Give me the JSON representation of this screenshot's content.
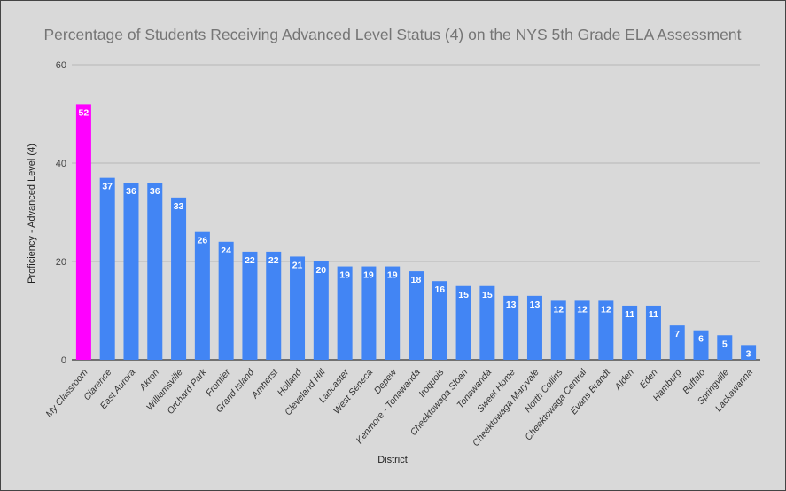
{
  "chart_data": {
    "type": "bar",
    "title": "Percentage of Students Receiving Advanced Level Status (4) on the NYS 5th Grade ELA Assessment",
    "xlabel": "District",
    "ylabel": "Proficiency - Advanced Level (4)",
    "ylim": [
      0,
      60
    ],
    "yticks": [
      0,
      20,
      40,
      60
    ],
    "grid": true,
    "categories": [
      "My Classroom",
      "Clarence",
      "East Aurora",
      "Akron",
      "Williamsville",
      "Orchard Park",
      "Frontier",
      "Grand Island",
      "Amherst",
      "Holland",
      "Cleveland Hill",
      "Lancaster",
      "West Seneca",
      "Depew",
      "Kenmore - Tonawanda",
      "Iroquois",
      "Cheektowaga Sloan",
      "Tonawanda",
      "Sweet Home",
      "Cheektowaga Maryvale",
      "North Collins",
      "Cheektowaga Central",
      "Evans Brandt",
      "Alden",
      "Eden",
      "Hamburg",
      "Buffalo",
      "Springville",
      "Lackawanna"
    ],
    "values": [
      52,
      37,
      36,
      36,
      33,
      26,
      24,
      22,
      22,
      21,
      20,
      19,
      19,
      19,
      18,
      16,
      15,
      15,
      13,
      13,
      12,
      12,
      12,
      11,
      11,
      7,
      6,
      5,
      3
    ],
    "colors": {
      "highlight": "#ff00ff",
      "default": "#4285f4"
    },
    "highlight_index": 0
  }
}
